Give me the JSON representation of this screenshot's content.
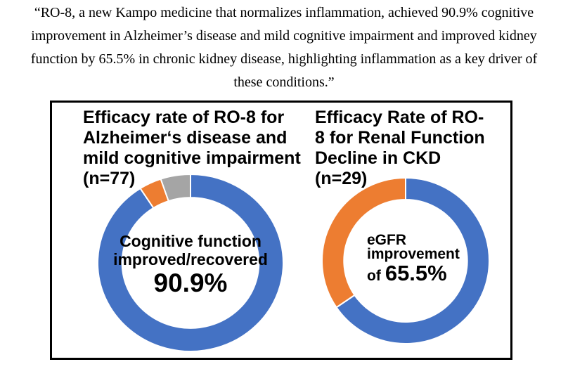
{
  "quote": {
    "lines": [
      "“RO-8, a new Kampo medicine that normalizes inflammation, achieved 90.9% cognitive",
      "improvement in Alzheimer’s disease and mild cognitive impairment and improved kidney",
      "function by 65.5% in chronic kidney disease, highlighting inflammation as a key driver of",
      "these conditions.”"
    ]
  },
  "panel": {
    "border_color": "#000000",
    "background": "#ffffff"
  },
  "palette": {
    "blue": "#4472C4",
    "orange": "#ED7D31",
    "gray": "#A5A5A5"
  },
  "chart_data": [
    {
      "type": "donut",
      "title": "Efficacy rate of RO-8 for Alzheimer‘s disease and mild cognitive impairment (n=77)",
      "title_lines": [
        "Efficacy rate of RO-8 for",
        "Alzheimer‘s disease and",
        "mild cognitive impairment",
        "(n=77)"
      ],
      "n": 77,
      "center_label_lines": [
        "Cognitive function",
        "improved/recovered"
      ],
      "center_value": "90.9%",
      "start_angle_deg": 0,
      "direction": "clockwise",
      "legend": "none",
      "segments": [
        {
          "label": "Cognitive function improved/recovered",
          "percent": 90.9,
          "color": "#4472C4"
        },
        {
          "label": "",
          "percent": 3.9,
          "color": "#ED7D31"
        },
        {
          "label": "",
          "percent": 5.2,
          "color": "#A5A5A5"
        }
      ]
    },
    {
      "type": "donut",
      "title": "Efficacy Rate of RO-8 for Renal Function Decline in CKD (n=29)",
      "title_lines": [
        "Efficacy Rate of RO-",
        "8 for Renal Function",
        "Decline in CKD",
        "(n=29)"
      ],
      "n": 29,
      "center_label_lines": [
        "eGFR",
        "improvement"
      ],
      "center_prefix": "of",
      "center_value": "65.5%",
      "start_angle_deg": 0,
      "direction": "clockwise",
      "legend": "none",
      "segments": [
        {
          "label": "eGFR improvement",
          "percent": 65.5,
          "color": "#4472C4"
        },
        {
          "label": "",
          "percent": 34.5,
          "color": "#ED7D31"
        }
      ]
    }
  ]
}
